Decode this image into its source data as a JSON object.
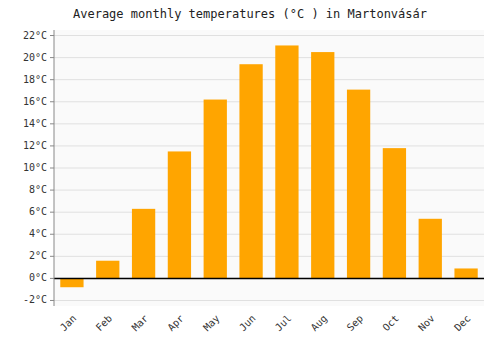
{
  "chart_data": {
    "type": "bar",
    "title": "Average monthly temperatures (°C ) in Martonvásár",
    "categories": [
      "Jan",
      "Feb",
      "Mar",
      "Apr",
      "May",
      "Jun",
      "Jul",
      "Aug",
      "Sep",
      "Oct",
      "Nov",
      "Dec"
    ],
    "values": [
      -0.8,
      1.6,
      6.3,
      11.5,
      16.2,
      19.4,
      21.1,
      20.5,
      17.1,
      11.8,
      5.4,
      0.9
    ],
    "color": "#FFA500",
    "ylim": [
      -2.5,
      22.5
    ],
    "yticks": [
      {
        "value": -2,
        "label": "-2°C"
      },
      {
        "value": 0,
        "label": "0°C"
      },
      {
        "value": 2,
        "label": "2°C"
      },
      {
        "value": 4,
        "label": "4°C"
      },
      {
        "value": 6,
        "label": "6°C"
      },
      {
        "value": 8,
        "label": "8°C"
      },
      {
        "value": 10,
        "label": "10°C"
      },
      {
        "value": 12,
        "label": "12°C"
      },
      {
        "value": 14,
        "label": "14°C"
      },
      {
        "value": 16,
        "label": "16°C"
      },
      {
        "value": 18,
        "label": "18°C"
      },
      {
        "value": 20,
        "label": "20°C"
      },
      {
        "value": 22,
        "label": "22°C"
      }
    ],
    "grid": true
  }
}
